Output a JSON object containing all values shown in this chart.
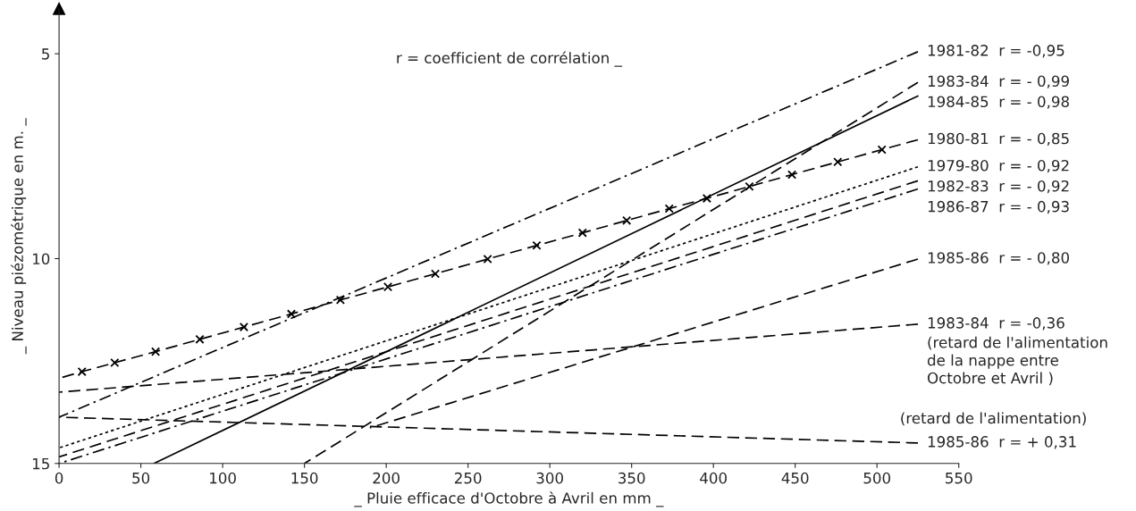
{
  "chart_data": {
    "type": "line",
    "xlabel": "_ Pluie efficace d'Octobre à Avril en mm _",
    "ylabel": "_ Niveau piézométrique en m. _",
    "xlim": [
      0,
      550
    ],
    "xticks": [
      0,
      50,
      100,
      150,
      200,
      250,
      300,
      350,
      400,
      450,
      500,
      550
    ],
    "ylim": [
      15,
      3.9
    ],
    "yticks": [
      5,
      10,
      15
    ],
    "grid": false,
    "series": [
      {
        "name": "1981-82  r = -0,95",
        "color": "#000000",
        "line_style": "dashdot",
        "x": [
          0,
          525
        ],
        "values": [
          13.87,
          4.95
        ]
      },
      {
        "name": "1983-84  r = - 0,99",
        "color": "#000000",
        "line_style": "dashed",
        "x": [
          150,
          525
        ],
        "values": [
          15,
          5.7
        ]
      },
      {
        "name": "1984-85  r = - 0,98",
        "color": "#000000",
        "line_style": "solid",
        "x": [
          58,
          525
        ],
        "values": [
          15,
          6.03
        ]
      },
      {
        "name": "1980-81  r = - 0,85",
        "color": "#000000",
        "line_style": "dashed",
        "marker": "cross",
        "x": [
          0,
          14,
          34,
          59,
          86,
          113,
          142,
          172,
          201,
          230,
          262,
          292,
          320,
          347,
          373,
          396,
          422,
          448,
          476,
          503,
          525
        ],
        "values": [
          12.92,
          12.76,
          12.54,
          12.27,
          11.97,
          11.67,
          11.35,
          11.01,
          10.69,
          10.37,
          10.01,
          9.68,
          9.37,
          9.07,
          8.78,
          8.53,
          8.24,
          7.95,
          7.64,
          7.34,
          7.1
        ]
      },
      {
        "name": "1979-80  r = - 0,92",
        "color": "#000000",
        "line_style": "dotted",
        "x": [
          0,
          525
        ],
        "values": [
          14.62,
          7.76
        ]
      },
      {
        "name": "1982-83  r = - 0,92",
        "color": "#000000",
        "line_style": "dashed",
        "x": [
          0,
          525
        ],
        "values": [
          14.84,
          8.1
        ]
      },
      {
        "name": "1986-87  r = - 0,93",
        "color": "#000000",
        "line_style": "dashdot",
        "x": [
          0,
          525
        ],
        "values": [
          15,
          8.3
        ]
      },
      {
        "name": "1985-86  r = - 0,80",
        "color": "#000000",
        "line_style": "dashed",
        "x": [
          190,
          525
        ],
        "values": [
          14.13,
          10.01
        ]
      },
      {
        "name": "1983-84  r = -0,36",
        "color": "#000000",
        "line_style": "dashed",
        "x": [
          0,
          525
        ],
        "values": [
          13.26,
          11.6
        ]
      },
      {
        "name": "1985-86  r = + 0,31",
        "color": "#000000",
        "line_style": "dashed",
        "x": [
          0,
          525
        ],
        "values": [
          13.87,
          14.5
        ]
      }
    ],
    "annotations": [
      "r = coefficient de corrélation _",
      "(retard de l'alimentation\nde la nappe entre\nOctobre et Avril )",
      "(retard de l'alimentation)"
    ]
  }
}
